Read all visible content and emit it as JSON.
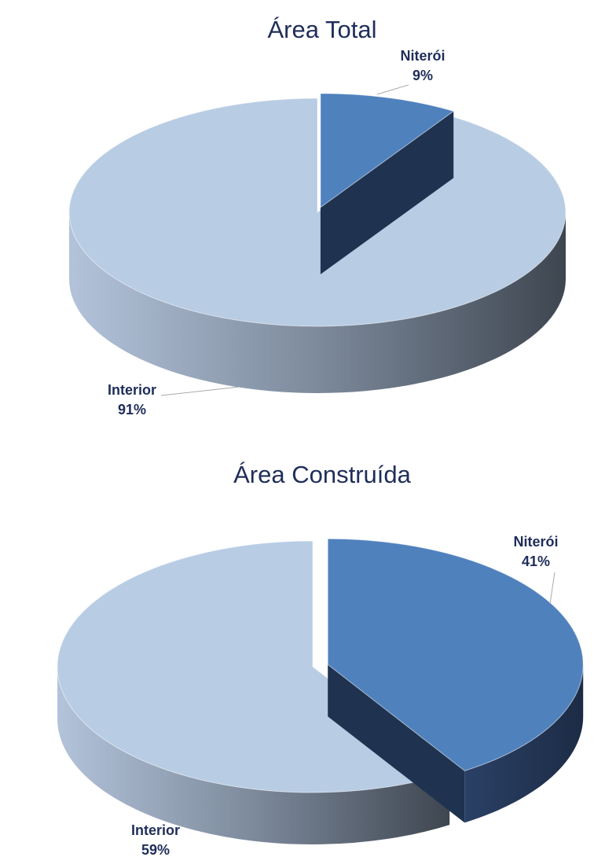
{
  "chart_data": [
    {
      "type": "pie",
      "title": "Área Total",
      "categories": [
        "Niterói",
        "Interior"
      ],
      "values": [
        9,
        91
      ],
      "value_labels": [
        "9%",
        "91%"
      ],
      "colors": [
        "#4f81bd",
        "#b8cce4"
      ]
    },
    {
      "type": "pie",
      "title": "Área Construída",
      "categories": [
        "Niterói",
        "Interior"
      ],
      "values": [
        41,
        59
      ],
      "value_labels": [
        "41%",
        "59%"
      ],
      "colors": [
        "#4f81bd",
        "#b8cce4"
      ]
    }
  ]
}
